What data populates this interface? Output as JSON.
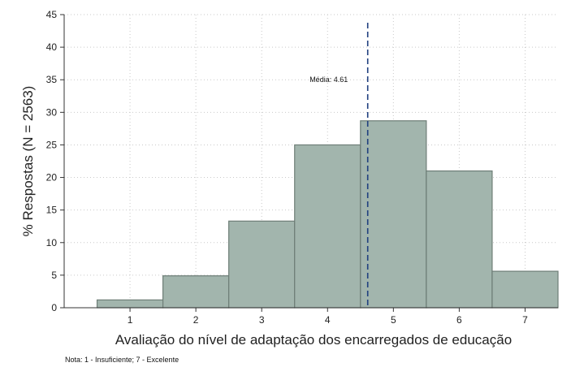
{
  "chart_data": {
    "type": "bar",
    "title": "",
    "xlabel": "Avaliação do nível de adaptação dos encarregados de educação",
    "ylabel": "% Respostas (N = 2563)",
    "categories": [
      "1",
      "2",
      "3",
      "4",
      "5",
      "6",
      "7"
    ],
    "values": [
      1.2,
      4.9,
      13.3,
      25.0,
      28.7,
      21.0,
      5.6
    ],
    "xlim": [
      0,
      7.5
    ],
    "ylim": [
      0,
      45
    ],
    "yticks": [
      0,
      5,
      10,
      15,
      20,
      25,
      30,
      35,
      40,
      45
    ],
    "xticks": [
      1,
      2,
      3,
      4,
      5,
      6,
      7
    ],
    "grid": true,
    "mean_line": {
      "x": 4.61,
      "label": "Média: 4.61"
    },
    "bar_color": "#a2b5ad",
    "bar_edge_color": "#6e7e77",
    "mean_line_color": "#1f3f7f",
    "note": "Nota: 1 - Insuficiente; 7 - Excelente"
  }
}
